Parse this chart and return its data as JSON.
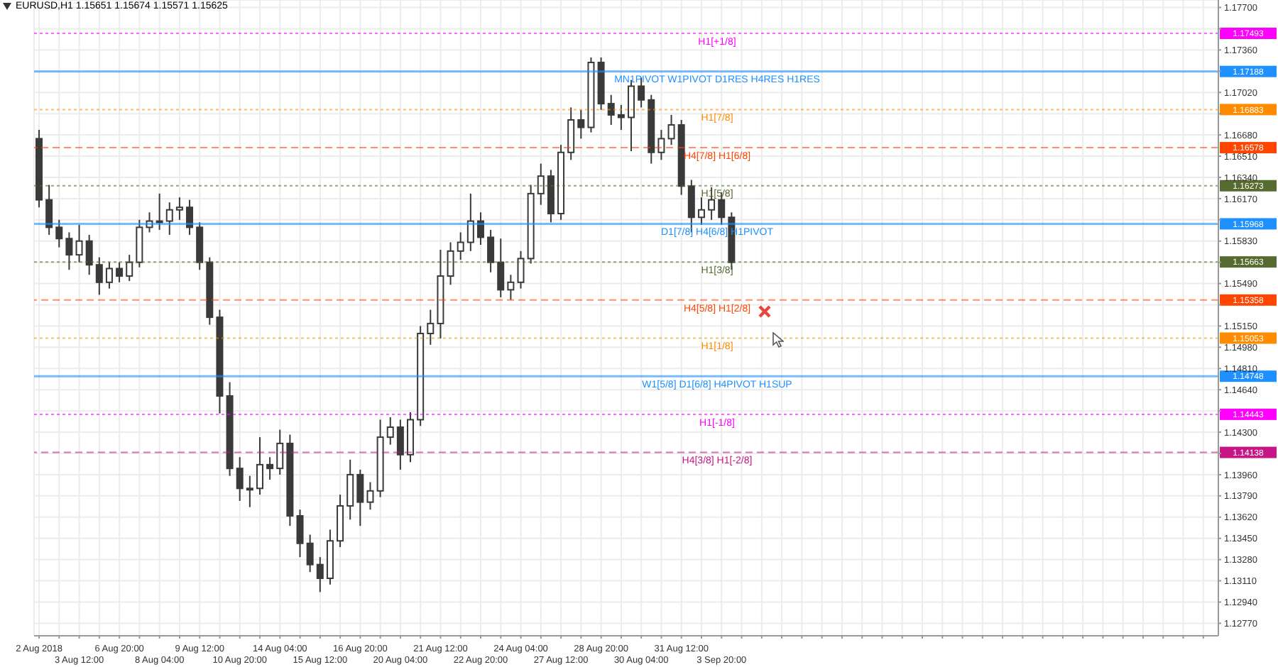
{
  "chart_data": {
    "type": "candlestick",
    "title": "EURUSD,H1  1.15651 1.15674 1.15571 1.15625",
    "categories": [
      "2 Aug 2018",
      null,
      null,
      null,
      "3 Aug 12:00",
      null,
      null,
      null,
      "6 Aug 20:00",
      null,
      null,
      null,
      "8 Aug 04:00",
      null,
      null,
      null,
      "9 Aug 12:00",
      null,
      null,
      null,
      "10 Aug 20:00",
      null,
      null,
      null,
      "14 Aug 04:00",
      null,
      null,
      null,
      "15 Aug 12:00",
      null,
      null,
      null,
      "16 Aug 20:00",
      null,
      null,
      null,
      "20 Aug 04:00",
      null,
      null,
      null,
      "21 Aug 12:00",
      null,
      null,
      null,
      "22 Aug 20:00",
      null,
      null,
      null,
      "24 Aug 04:00",
      null,
      null,
      null,
      "27 Aug 12:00",
      null,
      null,
      null,
      "28 Aug 20:00",
      null,
      null,
      null,
      "30 Aug 04:00",
      null,
      null,
      null,
      "31 Aug 12:00",
      null,
      null,
      null,
      "3 Sep 20:00",
      null,
      null,
      null,
      null,
      null,
      null,
      null,
      null,
      null,
      null,
      null,
      null,
      null,
      null,
      null,
      null,
      null,
      null,
      null,
      null,
      null,
      null,
      null,
      null,
      null,
      null,
      null,
      null,
      null,
      null,
      null,
      null,
      null,
      null,
      null,
      null,
      null,
      null,
      null,
      null,
      null,
      null,
      null,
      null,
      null,
      null,
      null,
      null,
      null
    ],
    "ohlc": [
      [
        1.1665,
        1.1672,
        1.161,
        1.1616
      ],
      [
        1.1616,
        1.1628,
        1.1588,
        1.1594
      ],
      [
        1.1594,
        1.16,
        1.1578,
        1.1585
      ],
      [
        1.1585,
        1.159,
        1.156,
        1.1572
      ],
      [
        1.1572,
        1.1596,
        1.1566,
        1.1583
      ],
      [
        1.1583,
        1.1588,
        1.1556,
        1.1564
      ],
      [
        1.1564,
        1.157,
        1.154,
        1.155
      ],
      [
        1.155,
        1.1566,
        1.1545,
        1.1561
      ],
      [
        1.1561,
        1.1566,
        1.155,
        1.1555
      ],
      [
        1.1555,
        1.1572,
        1.1551,
        1.1566
      ],
      [
        1.1566,
        1.16,
        1.1562,
        1.1594
      ],
      [
        1.1594,
        1.1606,
        1.159,
        1.1599
      ],
      [
        1.1599,
        1.1621,
        1.1592,
        1.1599
      ],
      [
        1.1599,
        1.1614,
        1.1588,
        1.1608
      ],
      [
        1.1608,
        1.1618,
        1.16,
        1.161
      ],
      [
        1.161,
        1.1616,
        1.1588,
        1.1594
      ],
      [
        1.1594,
        1.1598,
        1.156,
        1.1566
      ],
      [
        1.1566,
        1.157,
        1.1516,
        1.1522
      ],
      [
        1.1522,
        1.1528,
        1.1445,
        1.1459
      ],
      [
        1.1459,
        1.147,
        1.1395,
        1.1401
      ],
      [
        1.1401,
        1.141,
        1.1375,
        1.1385
      ],
      [
        1.1385,
        1.1395,
        1.137,
        1.1385
      ],
      [
        1.1385,
        1.1426,
        1.138,
        1.1404
      ],
      [
        1.1404,
        1.141,
        1.1392,
        1.1401
      ],
      [
        1.1401,
        1.1432,
        1.1396,
        1.1421
      ],
      [
        1.1421,
        1.1428,
        1.1355,
        1.1363
      ],
      [
        1.1363,
        1.1368,
        1.133,
        1.1341
      ],
      [
        1.1341,
        1.1348,
        1.1318,
        1.1324
      ],
      [
        1.1324,
        1.133,
        1.1302,
        1.1313
      ],
      [
        1.1313,
        1.1352,
        1.1308,
        1.1343
      ],
      [
        1.1343,
        1.138,
        1.1338,
        1.1371
      ],
      [
        1.1371,
        1.1408,
        1.136,
        1.1396
      ],
      [
        1.1396,
        1.14,
        1.1355,
        1.1374
      ],
      [
        1.1374,
        1.139,
        1.1368,
        1.1383
      ],
      [
        1.1383,
        1.144,
        1.1378,
        1.1426
      ],
      [
        1.1426,
        1.1442,
        1.142,
        1.1434
      ],
      [
        1.1434,
        1.144,
        1.14,
        1.1412
      ],
      [
        1.1412,
        1.1446,
        1.1406,
        1.144
      ],
      [
        1.144,
        1.1515,
        1.1435,
        1.1509
      ],
      [
        1.1509,
        1.1528,
        1.15,
        1.1517
      ],
      [
        1.1517,
        1.1576,
        1.1505,
        1.1555
      ],
      [
        1.1555,
        1.1582,
        1.1548,
        1.1575
      ],
      [
        1.1575,
        1.159,
        1.1568,
        1.1582
      ],
      [
        1.1582,
        1.1621,
        1.1575,
        1.1599
      ],
      [
        1.1599,
        1.1606,
        1.158,
        1.1586
      ],
      [
        1.1586,
        1.1592,
        1.1558,
        1.1566
      ],
      [
        1.1566,
        1.1585,
        1.1538,
        1.1544
      ],
      [
        1.1544,
        1.1556,
        1.1536,
        1.155
      ],
      [
        1.155,
        1.1575,
        1.1545,
        1.1569
      ],
      [
        1.1569,
        1.1628,
        1.1565,
        1.1621
      ],
      [
        1.1621,
        1.1645,
        1.1612,
        1.1635
      ],
      [
        1.1635,
        1.164,
        1.1598,
        1.1605
      ],
      [
        1.1605,
        1.166,
        1.16,
        1.1654
      ],
      [
        1.1654,
        1.169,
        1.1648,
        1.168
      ],
      [
        1.168,
        1.1688,
        1.1665,
        1.1674
      ],
      [
        1.1674,
        1.173,
        1.167,
        1.1726
      ],
      [
        1.1726,
        1.173,
        1.1688,
        1.1693
      ],
      [
        1.1693,
        1.17,
        1.1676,
        1.1684
      ],
      [
        1.1684,
        1.1692,
        1.1672,
        1.1682
      ],
      [
        1.1682,
        1.1712,
        1.1655,
        1.1707
      ],
      [
        1.1707,
        1.1714,
        1.169,
        1.1696
      ],
      [
        1.1696,
        1.17,
        1.1645,
        1.1654
      ],
      [
        1.1654,
        1.1672,
        1.1648,
        1.1665
      ],
      [
        1.1665,
        1.1684,
        1.166,
        1.1676
      ],
      [
        1.1676,
        1.168,
        1.162,
        1.1627
      ],
      [
        1.1627,
        1.1632,
        1.159,
        1.1602
      ],
      [
        1.1602,
        1.1618,
        1.1596,
        1.1608
      ],
      [
        1.1608,
        1.1626,
        1.16,
        1.1616
      ],
      [
        1.1616,
        1.1622,
        1.1596,
        1.1602
      ],
      [
        1.1602,
        1.1606,
        1.156,
        1.1566
      ],
      null,
      null,
      null,
      null,
      null,
      null,
      null,
      null,
      null,
      null,
      null,
      null,
      null,
      null,
      null,
      null,
      null,
      null,
      null,
      null,
      null,
      null,
      null,
      null,
      null,
      null,
      null,
      null,
      null,
      null,
      null,
      null,
      null,
      null,
      null,
      null,
      null,
      null,
      null,
      null,
      null,
      null,
      null,
      null,
      null,
      null,
      null,
      null
    ],
    "color": "#3a3a3a",
    "ylim": [
      1.1267,
      1.1776
    ],
    "yticks": [
      {
        "value": 1.177,
        "label": "1.17700"
      },
      {
        "value": 1.1753,
        "label": null
      },
      {
        "value": 1.1736,
        "label": "1.17360"
      },
      {
        "value": 1.1719,
        "label": null
      },
      {
        "value": 1.1702,
        "label": "1.17020"
      },
      {
        "value": 1.1685,
        "label": null
      },
      {
        "value": 1.1668,
        "label": "1.16680"
      },
      {
        "value": 1.1651,
        "label": "1.16510"
      },
      {
        "value": 1.1634,
        "label": "1.16340"
      },
      {
        "value": 1.1617,
        "label": "1.16170"
      },
      {
        "value": 1.16,
        "label": null
      },
      {
        "value": 1.1583,
        "label": "1.15830"
      },
      {
        "value": 1.1566,
        "label": null
      },
      {
        "value": 1.1549,
        "label": "1.15490"
      },
      {
        "value": 1.1532,
        "label": null
      },
      {
        "value": 1.1515,
        "label": "1.15150"
      },
      {
        "value": 1.1498,
        "label": "1.14980"
      },
      {
        "value": 1.1481,
        "label": "1.14810"
      },
      {
        "value": 1.1464,
        "label": "1.14640"
      },
      {
        "value": 1.1447,
        "label": null
      },
      {
        "value": 1.143,
        "label": "1.14300"
      },
      {
        "value": 1.1413,
        "label": null
      },
      {
        "value": 1.1396,
        "label": "1.13960"
      },
      {
        "value": 1.1379,
        "label": "1.13790"
      },
      {
        "value": 1.1362,
        "label": "1.13620"
      },
      {
        "value": 1.1345,
        "label": "1.13450"
      },
      {
        "value": 1.1328,
        "label": "1.13280"
      },
      {
        "value": 1.1311,
        "label": "1.13110"
      },
      {
        "value": 1.1294,
        "label": "1.12940"
      },
      {
        "value": 1.1277,
        "label": "1.12770"
      }
    ],
    "grid": true,
    "annotations": [
      "1.17493",
      "1.17188",
      "1.16883",
      "1.16578",
      "1.16273",
      "1.15968",
      "1.15663",
      "1.15358",
      "1.15053",
      "1.14748",
      "1.14443",
      "1.14138"
    ],
    "ref_lines": [
      {
        "axis": "y",
        "value": 1.17493,
        "label": "H1[+1/8]",
        "color": "#ff00ff",
        "line_style": "dotted"
      },
      {
        "axis": "y",
        "value": 1.17188,
        "label": "MN1PIVOT W1PIVOT D1RES H4RES H1RES",
        "color": "#1e90ff",
        "line_style": "solid"
      },
      {
        "axis": "y",
        "value": 1.16883,
        "label": "H1[7/8]",
        "color": "#ff8c00",
        "line_style": "dotted"
      },
      {
        "axis": "y",
        "value": 1.16578,
        "label": "H4[7/8] H1[6/8]",
        "color": "#ff4500",
        "line_style": "dashed"
      },
      {
        "axis": "y",
        "value": 1.16273,
        "label": "H1[5/8]",
        "color": "#556b2f",
        "line_style": "dotted"
      },
      {
        "axis": "y",
        "value": 1.15968,
        "label": "D1[7/8] H4[6/8] H1PIVOT",
        "color": "#1e90ff",
        "line_style": "solid"
      },
      {
        "axis": "y",
        "value": 1.15663,
        "label": "H1[3/8]",
        "color": "#556b2f",
        "line_style": "dotted"
      },
      {
        "axis": "y",
        "value": 1.15358,
        "label": "H4[5/8] H1[2/8]",
        "color": "#ff4500",
        "line_style": "dashed"
      },
      {
        "axis": "y",
        "value": 1.15053,
        "label": "H1[1/8]",
        "color": "#ff8c00",
        "line_style": "dotted"
      },
      {
        "axis": "y",
        "value": 1.14748,
        "label": "W1[5/8] D1[6/8] H4PIVOT H1SUP",
        "color": "#1e90ff",
        "line_style": "solid"
      },
      {
        "axis": "y",
        "value": 1.14443,
        "label": "H1[-1/8]",
        "color": "#ff00ff",
        "line_style": "dotted"
      },
      {
        "axis": "y",
        "value": 1.14138,
        "label": "H4[3/8] H1[-2/8]",
        "color": "#c71585",
        "line_style": "dashed"
      }
    ]
  }
}
